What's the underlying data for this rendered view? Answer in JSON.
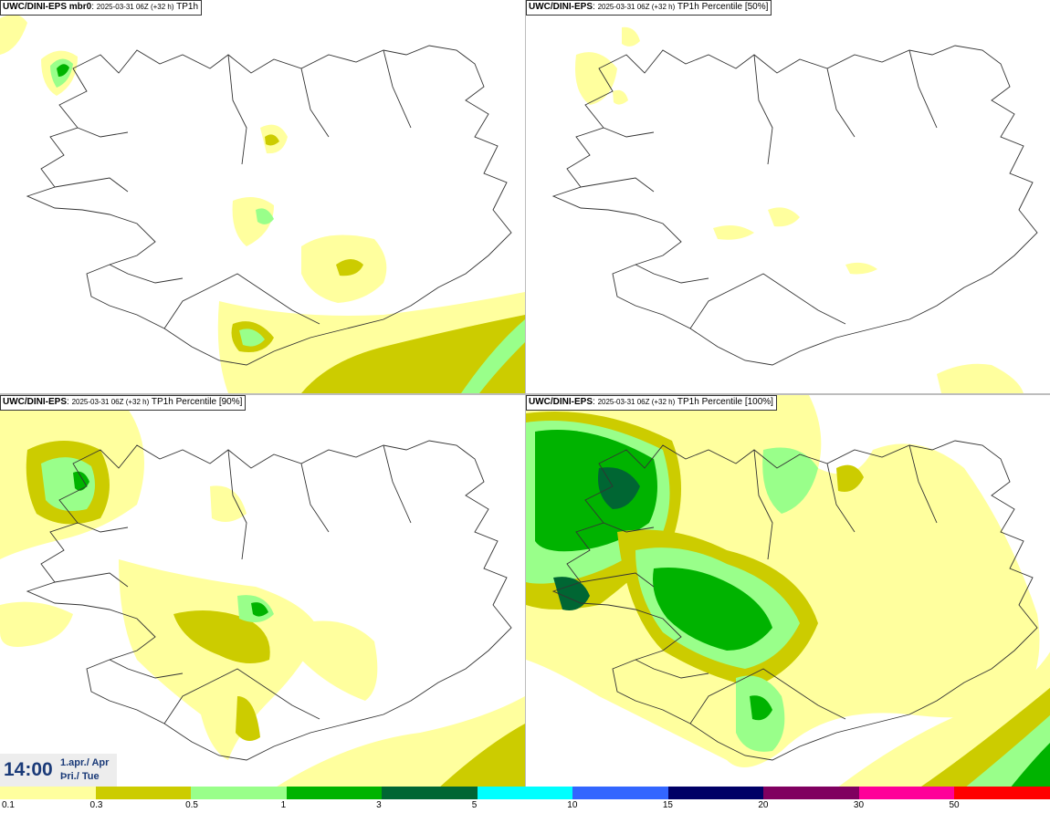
{
  "panels": [
    {
      "model": "UWC/DINI-EPS mbr0",
      "run": "2025-03-31 06Z (+32 h)",
      "field": "TP1h"
    },
    {
      "model": "UWC/DINI-EPS",
      "run": "2025-03-31 06Z (+32 h)",
      "field": "TP1h Percentile [50%]"
    },
    {
      "model": "UWC/DINI-EPS",
      "run": "2025-03-31 06Z (+32 h)",
      "field": "TP1h Percentile [90%]"
    },
    {
      "model": "UWC/DINI-EPS",
      "run": "2025-03-31 06Z (+32 h)",
      "field": "TP1h Percentile [100%]"
    }
  ],
  "time": {
    "clock": "14:00",
    "date_line": "1.apr./ Apr",
    "day_line": "Þri./ Tue"
  },
  "legend": {
    "colors": [
      "#ffff9e",
      "#cccc00",
      "#99ff8a",
      "#00b300",
      "#006633",
      "#00ffff",
      "#3366ff",
      "#000066",
      "#800060",
      "#ff0099",
      "#ff0000"
    ],
    "labels": [
      "0.1",
      "0.3",
      "0.5",
      "1",
      "3",
      "5",
      "10",
      "15",
      "20",
      "30",
      "50"
    ]
  }
}
